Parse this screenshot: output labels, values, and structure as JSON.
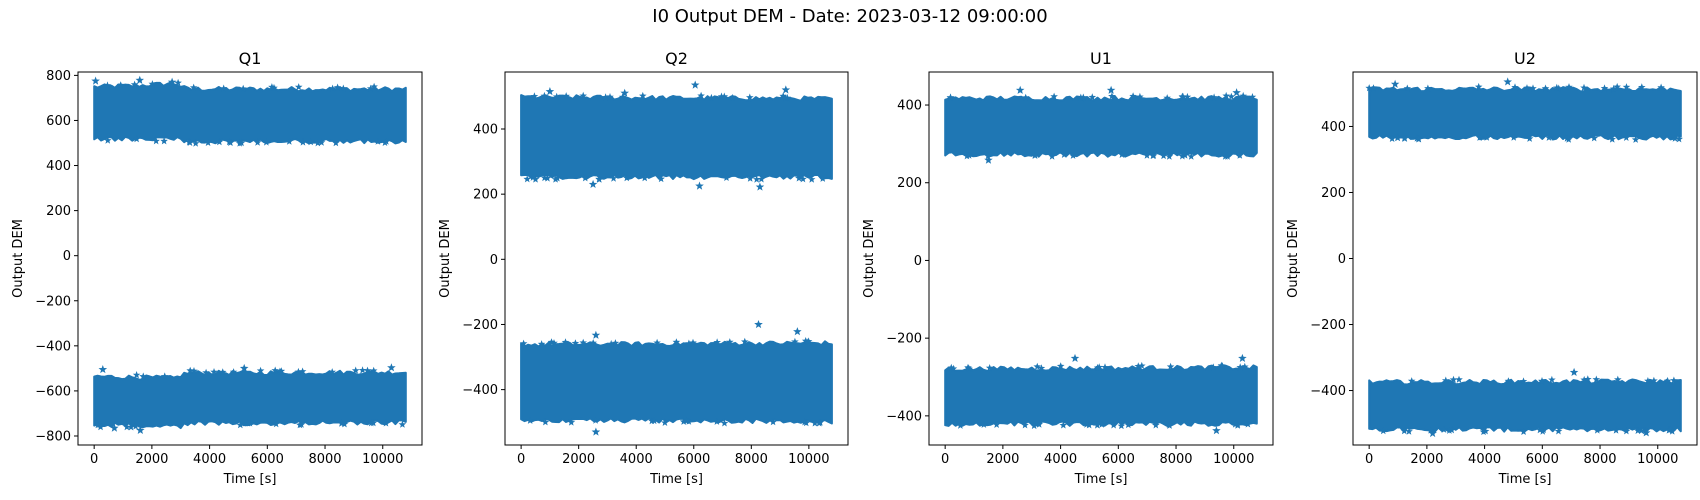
{
  "suptitle": "I0 Output DEM - Date: 2023-03-12 09:00:00",
  "chart_data": [
    {
      "type": "scatter",
      "title": "Q1",
      "xlabel": "Time [s]",
      "ylabel": "Output DEM",
      "marker": "star",
      "color": "#1f77b4",
      "xlim": [
        -560,
        11360
      ],
      "ylim": [
        -840,
        815
      ],
      "x_ticks": [
        0,
        2000,
        4000,
        6000,
        8000,
        10000
      ],
      "y_ticks": [
        -800,
        -600,
        -400,
        -200,
        0,
        200,
        400,
        600,
        800
      ],
      "time_range": [
        0,
        10800
      ],
      "bands": [
        {
          "upper": [
            [
              0,
              745
            ],
            [
              1500,
              750
            ],
            [
              2800,
              760
            ],
            [
              3200,
              735
            ],
            [
              10800,
              735
            ]
          ],
          "lower": [
            [
              0,
              525
            ],
            [
              3000,
              520
            ],
            [
              3200,
              512
            ],
            [
              10800,
              512
            ]
          ]
        },
        {
          "upper": [
            [
              0,
              -540
            ],
            [
              2800,
              -548
            ],
            [
              3200,
              -525
            ],
            [
              10800,
              -522
            ]
          ],
          "lower": [
            [
              0,
              -745
            ],
            [
              3000,
              -752
            ],
            [
              3200,
              -740
            ],
            [
              10800,
              -735
            ]
          ]
        }
      ],
      "outliers": [
        [
          50,
          775
        ],
        [
          1580,
          778
        ],
        [
          2700,
          770
        ],
        [
          300,
          -505
        ],
        [
          5200,
          -500
        ],
        [
          10300,
          -497
        ],
        [
          1600,
          -775
        ],
        [
          700,
          -765
        ]
      ]
    },
    {
      "type": "scatter",
      "title": "Q2",
      "xlabel": "Time [s]",
      "ylabel": "Output DEM",
      "marker": "star",
      "color": "#1f77b4",
      "xlim": [
        -560,
        11360
      ],
      "ylim": [
        -570,
        575
      ],
      "x_ticks": [
        0,
        2000,
        4000,
        6000,
        8000,
        10000
      ],
      "y_ticks": [
        -400,
        -200,
        0,
        200,
        400
      ],
      "time_range": [
        0,
        10800
      ],
      "bands": [
        {
          "upper": [
            [
              0,
              495
            ],
            [
              10800,
              490
            ]
          ],
          "lower": [
            [
              0,
              255
            ],
            [
              10800,
              255
            ]
          ]
        },
        {
          "upper": [
            [
              0,
              -265
            ],
            [
              10800,
              -260
            ]
          ],
          "lower": [
            [
              0,
              -490
            ],
            [
              10800,
              -495
            ]
          ]
        }
      ],
      "outliers": [
        [
          6050,
          535
        ],
        [
          2600,
          -233
        ],
        [
          8250,
          -200
        ],
        [
          9600,
          -222
        ],
        [
          2600,
          -530
        ],
        [
          1000,
          515
        ],
        [
          3600,
          510
        ],
        [
          9200,
          520
        ],
        [
          2500,
          230
        ],
        [
          6200,
          225
        ],
        [
          8300,
          222
        ]
      ]
    },
    {
      "type": "scatter",
      "title": "U1",
      "xlabel": "Time [s]",
      "ylabel": "Output DEM",
      "marker": "star",
      "color": "#1f77b4",
      "xlim": [
        -560,
        11360
      ],
      "ylim": [
        -475,
        485
      ],
      "x_ticks": [
        0,
        2000,
        4000,
        6000,
        8000,
        10000
      ],
      "y_ticks": [
        -400,
        -200,
        0,
        200,
        400
      ],
      "time_range": [
        0,
        10800
      ],
      "bands": [
        {
          "upper": [
            [
              0,
              415
            ],
            [
              10800,
              415
            ]
          ],
          "lower": [
            [
              0,
              275
            ],
            [
              10800,
              275
            ]
          ]
        },
        {
          "upper": [
            [
              0,
              -282
            ],
            [
              10800,
              -278
            ]
          ],
          "lower": [
            [
              0,
              -418
            ],
            [
              10800,
              -418
            ]
          ]
        }
      ],
      "outliers": [
        [
          2600,
          438
        ],
        [
          5750,
          438
        ],
        [
          10100,
          432
        ],
        [
          4500,
          -252
        ],
        [
          10300,
          -252
        ],
        [
          9400,
          -438
        ],
        [
          1500,
          258
        ]
      ]
    },
    {
      "type": "scatter",
      "title": "U2",
      "xlabel": "Time [s]",
      "ylabel": "Output DEM",
      "marker": "star",
      "color": "#1f77b4",
      "xlim": [
        -560,
        11360
      ],
      "ylim": [
        -565,
        565
      ],
      "x_ticks": [
        0,
        2000,
        4000,
        6000,
        8000,
        10000
      ],
      "y_ticks": [
        -400,
        -200,
        0,
        200,
        400
      ],
      "time_range": [
        0,
        10800
      ],
      "bands": [
        {
          "upper": [
            [
              0,
              510
            ],
            [
              10800,
              510
            ]
          ],
          "lower": [
            [
              0,
              370
            ],
            [
              10800,
              370
            ]
          ]
        },
        {
          "upper": [
            [
              0,
              -378
            ],
            [
              10800,
              -375
            ]
          ],
          "lower": [
            [
              0,
              -515
            ],
            [
              10800,
              -515
            ]
          ]
        }
      ],
      "outliers": [
        [
          4800,
          535
        ],
        [
          7100,
          -345
        ],
        [
          2200,
          -530
        ],
        [
          9600,
          -528
        ],
        [
          900,
          528
        ]
      ]
    }
  ]
}
